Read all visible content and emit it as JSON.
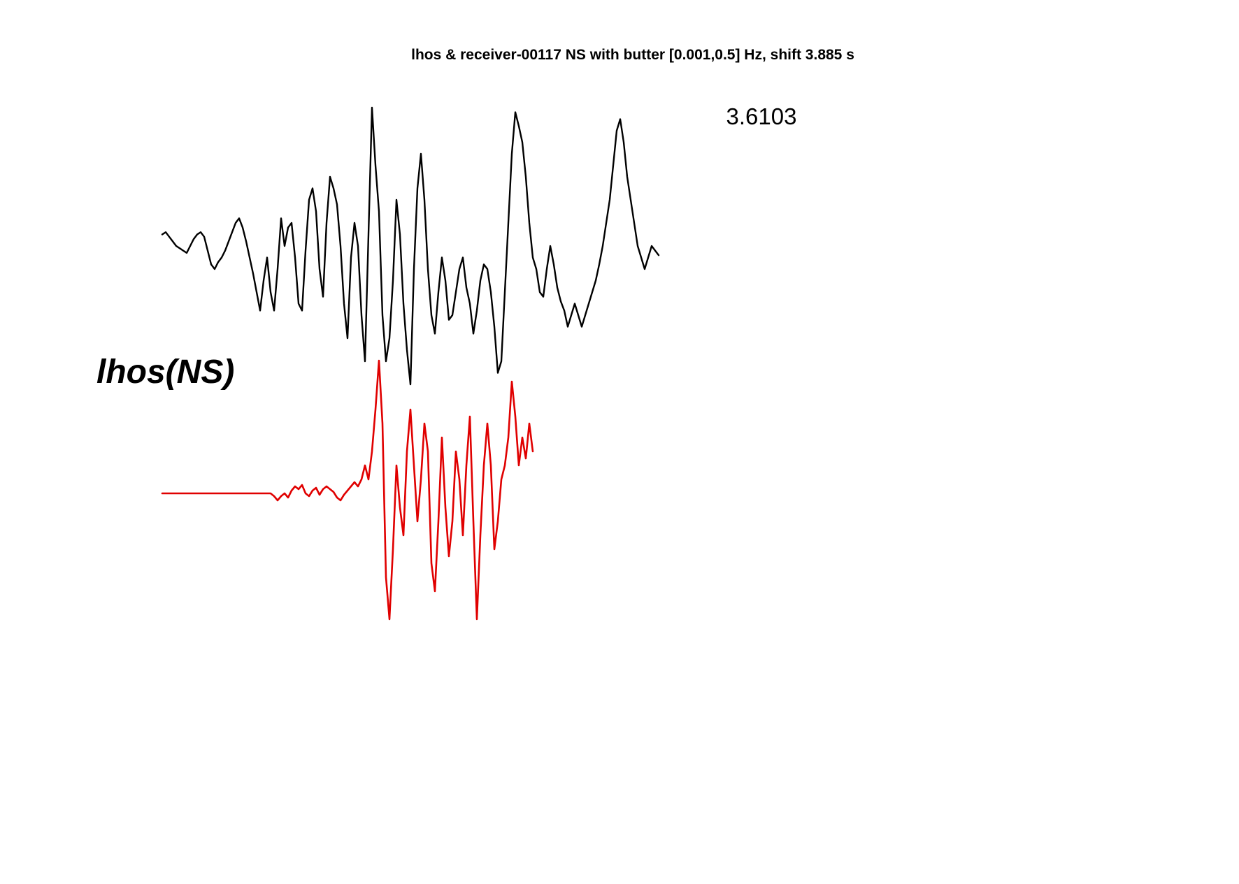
{
  "chart_data": {
    "type": "line",
    "title": "lhos & receiver-00117 NS with butter [0.001,0.5] Hz, shift 3.885 s",
    "annotation": "3.6103",
    "station_label": "lhos(NS)",
    "axes_visible": false,
    "grid": false,
    "series": [
      {
        "color": "#000000",
        "x": [
          0,
          5,
          10,
          15,
          20,
          25,
          30,
          35,
          40,
          45,
          50,
          55,
          60,
          65,
          70,
          75,
          80,
          85,
          90,
          95,
          100,
          105,
          110,
          115,
          120,
          125,
          130,
          135,
          140,
          145,
          150,
          155,
          160,
          165,
          170,
          175,
          180,
          185,
          190,
          195,
          200,
          205,
          210,
          215,
          220,
          225,
          230,
          235,
          240,
          245,
          250,
          255,
          260,
          265,
          270,
          275,
          280,
          285,
          290,
          295,
          300,
          305,
          310,
          315,
          320,
          325,
          330,
          335,
          340,
          345,
          350,
          355,
          360,
          365,
          370,
          375,
          380,
          385,
          390,
          395,
          400,
          405,
          410,
          415,
          420,
          425,
          430,
          435,
          440,
          445,
          450,
          455,
          460,
          465,
          470,
          475,
          480,
          485,
          490,
          495,
          500,
          505,
          510,
          515,
          520,
          525,
          530,
          535,
          540,
          545,
          550,
          555,
          560,
          565,
          570,
          575,
          580,
          585,
          590,
          595,
          600,
          605,
          610,
          615,
          620,
          625,
          630,
          635,
          640,
          645,
          650,
          655,
          660,
          665,
          670,
          675,
          680,
          685,
          690,
          695,
          700,
          705,
          710
        ],
        "y": [
          0.05,
          0.06,
          0.04,
          0.02,
          0.0,
          -0.01,
          -0.02,
          -0.03,
          0.0,
          0.03,
          0.05,
          0.06,
          0.04,
          -0.02,
          -0.08,
          -0.1,
          -0.07,
          -0.05,
          -0.02,
          0.02,
          0.06,
          0.1,
          0.12,
          0.08,
          0.02,
          -0.05,
          -0.12,
          -0.2,
          -0.28,
          -0.15,
          -0.05,
          -0.2,
          -0.28,
          -0.1,
          0.12,
          0.0,
          0.08,
          0.1,
          -0.05,
          -0.25,
          -0.28,
          -0.02,
          0.2,
          0.25,
          0.15,
          -0.1,
          -0.22,
          0.1,
          0.3,
          0.25,
          0.18,
          0.0,
          -0.25,
          -0.4,
          -0.05,
          0.1,
          0.0,
          -0.3,
          -0.5,
          0.05,
          0.6,
          0.35,
          0.15,
          -0.3,
          -0.5,
          -0.4,
          -0.15,
          0.2,
          0.05,
          -0.25,
          -0.45,
          -0.6,
          -0.1,
          0.25,
          0.4,
          0.2,
          -0.1,
          -0.3,
          -0.38,
          -0.2,
          -0.05,
          -0.15,
          -0.32,
          -0.3,
          -0.2,
          -0.1,
          -0.05,
          -0.18,
          -0.25,
          -0.38,
          -0.28,
          -0.15,
          -0.08,
          -0.1,
          -0.2,
          -0.35,
          -0.55,
          -0.5,
          -0.2,
          0.1,
          0.4,
          0.58,
          0.52,
          0.45,
          0.3,
          0.1,
          -0.05,
          -0.1,
          -0.2,
          -0.22,
          -0.1,
          0.0,
          -0.08,
          -0.18,
          -0.24,
          -0.28,
          -0.35,
          -0.3,
          -0.25,
          -0.3,
          -0.35,
          -0.3,
          -0.25,
          -0.2,
          -0.15,
          -0.08,
          0.0,
          0.1,
          0.2,
          0.35,
          0.5,
          0.55,
          0.45,
          0.3,
          0.2,
          0.1,
          0.0,
          -0.05,
          -0.1,
          -0.05,
          0.0,
          -0.02,
          -0.04
        ]
      },
      {
        "color": "#e00000",
        "x": [
          0,
          5,
          10,
          15,
          20,
          25,
          30,
          35,
          40,
          45,
          50,
          55,
          60,
          65,
          70,
          75,
          80,
          85,
          90,
          95,
          100,
          105,
          110,
          115,
          120,
          125,
          130,
          135,
          140,
          145,
          150,
          155,
          160,
          165,
          170,
          175,
          180,
          185,
          190,
          195,
          200,
          205,
          210,
          215,
          220,
          225,
          230,
          235,
          240,
          245,
          250,
          255,
          260,
          265,
          270,
          275,
          280,
          285,
          290,
          295,
          300,
          305,
          310,
          315,
          320,
          325,
          330,
          335,
          340,
          345,
          350,
          355,
          360,
          365,
          370,
          375,
          380,
          385,
          390,
          395,
          400,
          405,
          410,
          415,
          420,
          425,
          430,
          435,
          440,
          445,
          450,
          455,
          460,
          465,
          470,
          475,
          480,
          485,
          490,
          495,
          500,
          505,
          510,
          515,
          520,
          525,
          530
        ],
        "y": [
          0.0,
          0.0,
          0.0,
          0.0,
          0.0,
          0.0,
          0.0,
          0.0,
          0.0,
          0.0,
          0.0,
          0.0,
          0.0,
          0.0,
          0.0,
          0.0,
          0.0,
          0.0,
          0.0,
          0.0,
          0.0,
          0.0,
          0.0,
          0.0,
          0.0,
          0.0,
          0.0,
          0.0,
          0.0,
          0.0,
          0.0,
          0.0,
          -0.02,
          -0.05,
          -0.02,
          0.0,
          -0.03,
          0.02,
          0.05,
          0.03,
          0.06,
          0.0,
          -0.02,
          0.02,
          0.04,
          -0.01,
          0.03,
          0.05,
          0.03,
          0.01,
          -0.03,
          -0.05,
          -0.01,
          0.02,
          0.05,
          0.08,
          0.05,
          0.1,
          0.2,
          0.1,
          0.3,
          0.6,
          0.95,
          0.5,
          -0.6,
          -0.9,
          -0.4,
          0.2,
          -0.1,
          -0.3,
          0.3,
          0.6,
          0.2,
          -0.2,
          0.1,
          0.5,
          0.3,
          -0.5,
          -0.7,
          -0.2,
          0.4,
          -0.1,
          -0.45,
          -0.2,
          0.3,
          0.1,
          -0.3,
          0.2,
          0.55,
          -0.2,
          -0.9,
          -0.3,
          0.2,
          0.5,
          0.2,
          -0.4,
          -0.2,
          0.1,
          0.2,
          0.4,
          0.8,
          0.55,
          0.2,
          0.4,
          0.25,
          0.5,
          0.3
        ]
      }
    ]
  }
}
